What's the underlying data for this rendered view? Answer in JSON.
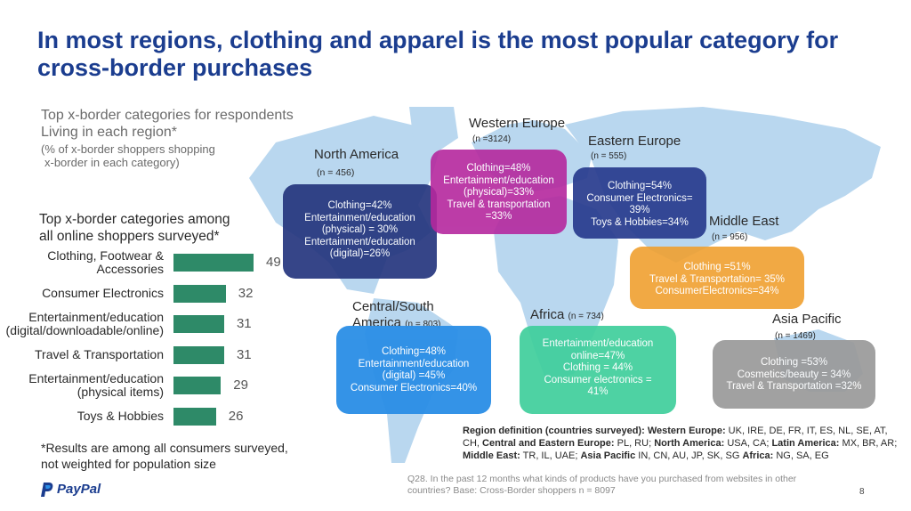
{
  "title": "In most regions, clothing and apparel is the most popular category for cross-border purchases",
  "left_notes": {
    "region_intro_1": "Top x-border categories for respondents",
    "region_intro_2": "Living in each region*",
    "region_intro_3": "(% of x-border shoppers shopping",
    "region_intro_4": "x-border in each category)",
    "chart_heading_1": "Top x-border categories among",
    "chart_heading_2": "all online shoppers surveyed*",
    "footnote_1": "*Results are among all consumers surveyed,",
    "footnote_2": "not weighted for population size"
  },
  "chart_data": {
    "type": "bar",
    "orientation": "horizontal",
    "categories": [
      "Clothing, Footwear & Accessories",
      "Consumer Electronics",
      "Entertainment/education (digital/downloadable/online)",
      "Travel & Transportation",
      "Entertainment/education (physical items)",
      "Toys & Hobbies"
    ],
    "category_display": [
      "Clothing, Footwear &\nAccessories",
      "Consumer Electronics",
      "Entertainment/education\n(digital/downloadable/online)",
      "Travel & Transportation",
      "Entertainment/education\n(physical items)",
      "Toys & Hobbies"
    ],
    "values": [
      49,
      32,
      31,
      31,
      29,
      26
    ],
    "value_labels": [
      "49",
      "32",
      "31",
      "31",
      "29",
      "26"
    ],
    "bar_color": "#2e8a68",
    "xlim": [
      0,
      50
    ],
    "grid": false
  },
  "regions": {
    "north_america": {
      "name": "North America",
      "n": "(n = 456)",
      "color": "#25367e",
      "lines": [
        "Clothing=42%",
        "Entertainment/education",
        "(physical) = 30%",
        "Entertainment/education",
        "(digital)=26%"
      ]
    },
    "western_europe": {
      "name": "Western Europe",
      "n": "(n =3124)",
      "color": "#b5289e",
      "lines": [
        "Clothing=48%",
        "Entertainment/education",
        "(physical)=33%",
        "Travel & transportation",
        "=33%"
      ]
    },
    "eastern_europe": {
      "name": "Eastern Europe",
      "n": "(n = 555)",
      "color": "#283b8e",
      "lines": [
        "Clothing=54%",
        "Consumer Electronics=",
        "39%",
        "Toys & Hobbies=34%"
      ]
    },
    "middle_east": {
      "name": "Middle East",
      "n": "(n = 956)",
      "color": "#f0a030",
      "lines": [
        "Clothing =51%",
        "Travel & Transportation= 35%",
        "ConsumerElectronics=34%"
      ]
    },
    "central_south_america": {
      "name_1": "Central/South",
      "name_2": "America",
      "n": "(n = 803)",
      "color": "#2a8ee6",
      "lines": [
        "Clothing=48%",
        "Entertainment/education",
        "(digital) =45%",
        "Consumer Electronics=40%"
      ]
    },
    "africa": {
      "name": "Africa",
      "n": "(n = 734)",
      "color": "#3fcf9c",
      "lines": [
        "Entertainment/education",
        "online=47%",
        "Clothing = 44%",
        "Consumer  electronics =",
        "41%"
      ]
    },
    "asia_pacific": {
      "name": "Asia Pacific",
      "n": "(n = 1469)",
      "color": "#9a9a9a",
      "lines": [
        "Clothing =53%",
        "Cosmetics/beauty = 34%",
        "Travel & Transportation =32%"
      ]
    }
  },
  "region_definition": {
    "heading": "Region definition (countries surveyed):",
    "we_label": "Western Europe:",
    "we_countries": " UK, IRE, DE, FR, IT, ES, NL, SE, AT, CH,",
    "cee_label": "Central and Eastern Europe:",
    "cee_countries": " PL, RU;",
    "na_label": "North America:",
    "na_countries": " USA, CA;",
    "la_label": "Latin America:",
    "la_countries": " MX, BR, AR;",
    "me_label": "Middle East:",
    "me_countries": "  TR, IL, UAE;",
    "ap_label": "Asia Pacific",
    "ap_countries": " IN, CN, AU, JP, SK, SG",
    "af_label": "Africa:",
    "af_countries": " NG, SA, EG"
  },
  "question_note": "Q28. In the past 12 months what kinds of products have you purchased from websites in other countries? Base: Cross-Border shoppers n = 8097",
  "page_number": "8",
  "logo_text": "PayPal",
  "colors": {
    "title": "#1b3d8f",
    "map": "#b9d7ef",
    "bar": "#2e8a68"
  }
}
